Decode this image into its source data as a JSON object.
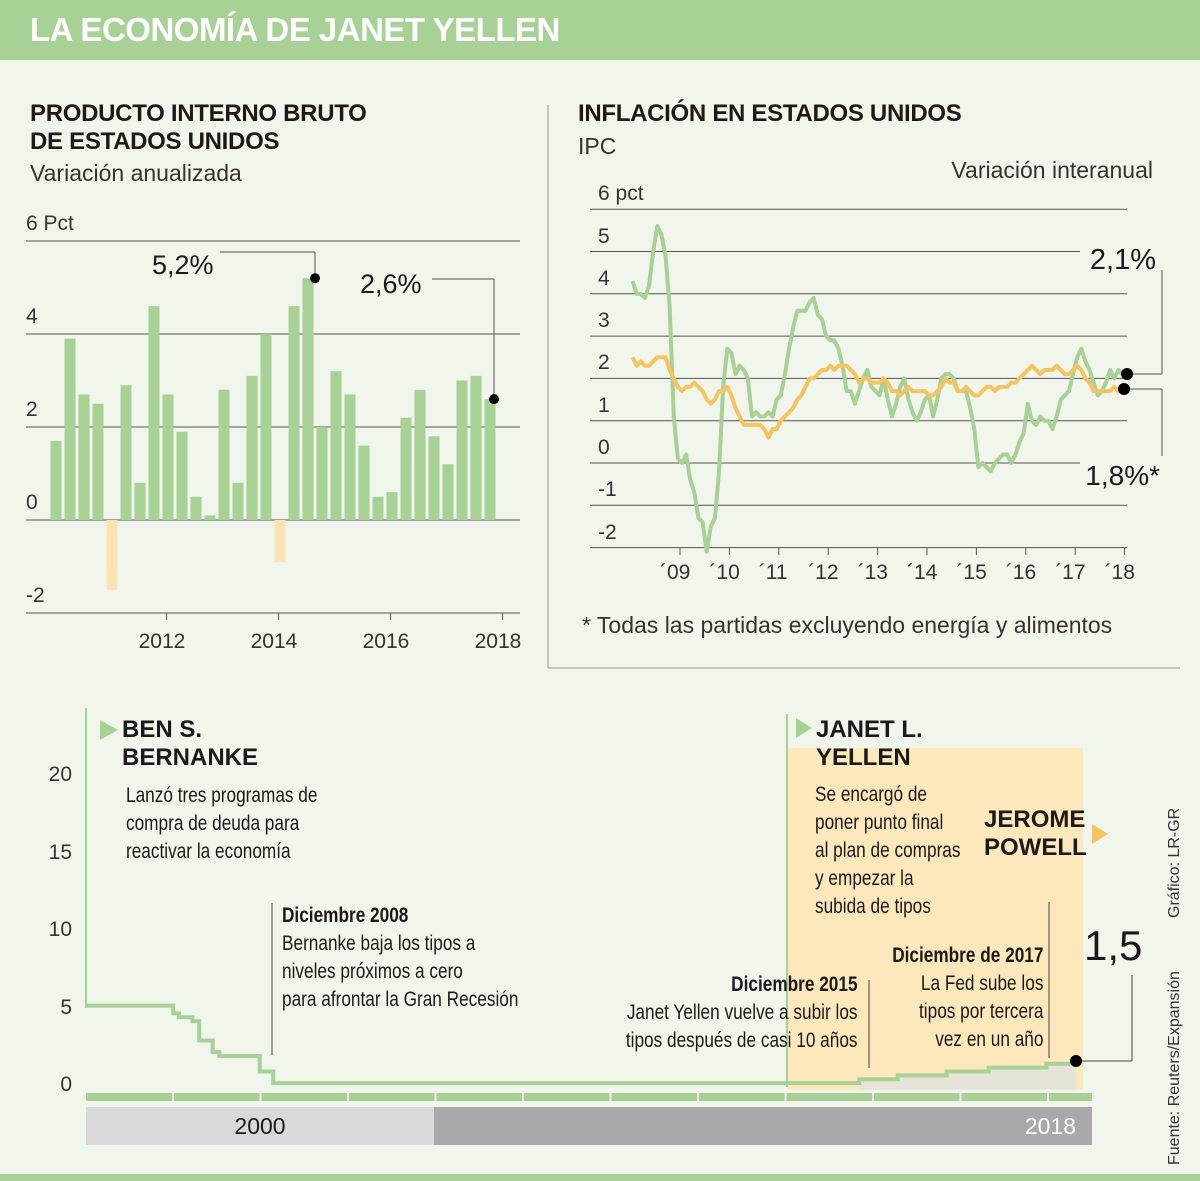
{
  "title": "LA ECONOMÍA DE JANET YELLEN",
  "colors": {
    "green": "#a8d196",
    "orange": "#f7c35c",
    "negative": "#fde2b3",
    "yellen_band": "#fde8bb",
    "accent_bar": "#a8d196"
  },
  "gdp": {
    "title_line1": "PRODUCTO INTERNO BRUTO",
    "title_line2": "DE ESTADOS UNIDOS",
    "subtitle": "Variación anualizada",
    "callout_peak": "5,2%",
    "callout_last": "2,6%"
  },
  "inflation": {
    "title": "INFLACIÓN EN ESTADOS UNIDOS",
    "subtitle": "IPC",
    "measure": "Variación interanual",
    "callout_headline": "2,1%",
    "callout_core": "1,8%*",
    "footnote": "* Todas las partidas excluyendo energía y alimentos"
  },
  "rates": {
    "bernanke": {
      "name1": "BEN S.",
      "name2": "BERNANKE",
      "desc": [
        "Lanzó tres programas de",
        "compra de deuda para",
        "reactivar la economía"
      ]
    },
    "dec2008": {
      "title": "Diciembre 2008",
      "desc": [
        "Bernanke baja los tipos a",
        "niveles próximos a cero",
        "para afrontar la Gran Recesión"
      ]
    },
    "yellen": {
      "name1": "JANET L.",
      "name2": "YELLEN",
      "desc": [
        "Se encargó de",
        "poner punto final",
        "al plan de compras",
        "y empezar la",
        "subida de tipos"
      ]
    },
    "powell": {
      "name1": "JEROME",
      "name2": "POWELL"
    },
    "dec2015": {
      "title": "Diciembre 2015",
      "desc": [
        "Janet Yellen vuelve a subir los",
        "tipos después de casi 10 años"
      ]
    },
    "dec2017": {
      "title": "Diciembre de 2017",
      "desc": [
        "La Fed sube los",
        "tipos por tercera",
        "vez en un año"
      ]
    },
    "last_value": "1,5",
    "era_labels": [
      "2000",
      "2018"
    ]
  },
  "credits": {
    "graphic": "Gráfico: LR-GR",
    "source": "Fuente: Reuters/Expansión"
  },
  "chart_data": [
    {
      "type": "bar",
      "title": "PRODUCTO INTERNO BRUTO DE ESTADOS UNIDOS",
      "subtitle": "Variación anualizada",
      "ylabel": "6 Pct",
      "ylim": [
        -2,
        6
      ],
      "y_ticks": [
        "6 Pct",
        "4",
        "2",
        "0",
        "-2"
      ],
      "x_ticks": [
        "2012",
        "2014",
        "2016",
        "2018"
      ],
      "grid": true,
      "values": [
        1.7,
        3.9,
        2.7,
        2.5,
        -1.5,
        2.9,
        0.8,
        4.6,
        2.7,
        1.9,
        0.5,
        0.1,
        2.8,
        0.8,
        3.1,
        4.0,
        -0.9,
        4.6,
        5.2,
        2.0,
        3.2,
        2.7,
        1.6,
        0.5,
        0.6,
        2.2,
        2.8,
        1.8,
        1.2,
        3.0,
        3.1,
        2.6
      ]
    },
    {
      "type": "line",
      "title": "INFLACIÓN EN ESTADOS UNIDOS",
      "ylim": [
        -2,
        6
      ],
      "y_ticks": [
        "6 pct",
        "5",
        "4",
        "3",
        "2",
        "1",
        "0",
        "-1",
        "-2"
      ],
      "x_ticks": [
        "´09",
        "´10",
        "´11",
        "´12",
        "´13",
        "´14",
        "´15",
        "´16",
        "´17",
        "´18"
      ],
      "x_range": [
        "2008-01",
        "2017-12"
      ],
      "grid": true,
      "series": [
        {
          "color": "#a8d196",
          "values": [
            4.3,
            4.0,
            4.0,
            3.9,
            4.2,
            5.0,
            5.6,
            5.4,
            4.9,
            3.7,
            1.1,
            0.1,
            0.0,
            0.2,
            -0.4,
            -0.7,
            -1.3,
            -1.4,
            -2.1,
            -1.5,
            -1.3,
            -0.2,
            1.8,
            2.7,
            2.6,
            2.1,
            2.3,
            2.2,
            2.0,
            1.1,
            1.2,
            1.1,
            1.1,
            1.2,
            1.1,
            1.5,
            1.6,
            2.1,
            2.7,
            3.2,
            3.6,
            3.6,
            3.6,
            3.8,
            3.9,
            3.5,
            3.4,
            3.0,
            2.9,
            2.9,
            2.7,
            2.3,
            1.7,
            1.7,
            1.4,
            1.7,
            2.0,
            2.2,
            1.8,
            1.7,
            1.6,
            2.0,
            1.5,
            1.1,
            1.4,
            1.8,
            2.0,
            1.5,
            1.2,
            1.0,
            1.2,
            1.5,
            1.6,
            1.1,
            1.5,
            2.0,
            2.1,
            2.1,
            2.0,
            1.7,
            1.7,
            1.7,
            1.3,
            0.8,
            -0.1,
            0.0,
            -0.1,
            -0.2,
            0.0,
            0.1,
            0.2,
            0.2,
            0.0,
            0.2,
            0.5,
            0.7,
            1.4,
            1.0,
            0.9,
            1.1,
            1.0,
            1.0,
            0.8,
            1.1,
            1.5,
            1.6,
            1.7,
            2.1,
            2.5,
            2.7,
            2.4,
            2.2,
            1.9,
            1.6,
            1.7,
            1.9,
            2.2,
            2.0,
            2.2,
            2.1
          ]
        },
        {
          "color": "#f7c35c",
          "values": [
            2.5,
            2.3,
            2.4,
            2.3,
            2.3,
            2.4,
            2.5,
            2.5,
            2.5,
            2.2,
            2.0,
            1.8,
            1.7,
            1.8,
            1.8,
            1.9,
            1.8,
            1.7,
            1.5,
            1.4,
            1.5,
            1.7,
            1.7,
            1.8,
            1.6,
            1.3,
            1.1,
            0.9,
            0.9,
            0.9,
            0.9,
            0.9,
            0.8,
            0.6,
            0.8,
            0.8,
            1.0,
            1.1,
            1.2,
            1.3,
            1.5,
            1.6,
            1.8,
            2.0,
            2.0,
            2.1,
            2.2,
            2.2,
            2.3,
            2.2,
            2.3,
            2.3,
            2.3,
            2.2,
            2.1,
            1.9,
            2.0,
            2.0,
            1.9,
            1.9,
            1.9,
            2.0,
            1.9,
            1.7,
            1.7,
            1.6,
            1.7,
            1.8,
            1.7,
            1.7,
            1.7,
            1.7,
            1.6,
            1.6,
            1.7,
            1.8,
            2.0,
            1.9,
            1.9,
            1.7,
            1.7,
            1.8,
            1.7,
            1.6,
            1.6,
            1.7,
            1.8,
            1.8,
            1.7,
            1.8,
            1.8,
            1.8,
            1.9,
            1.9,
            2.0,
            2.1,
            2.2,
            2.3,
            2.2,
            2.1,
            2.2,
            2.2,
            2.2,
            2.3,
            2.2,
            2.1,
            2.1,
            2.2,
            2.3,
            2.2,
            2.0,
            1.9,
            1.7,
            1.7,
            1.7,
            1.7,
            1.7,
            1.8,
            1.7,
            1.8
          ]
        }
      ]
    },
    {
      "type": "line",
      "subtype": "step",
      "ylim": [
        0,
        20
      ],
      "y_ticks": [
        "20",
        "15",
        "10",
        "5",
        "0"
      ],
      "steps": [
        {
          "date": "2006",
          "rate": 5.25
        },
        {
          "date": "2007-09",
          "rate": 4.75
        },
        {
          "date": "2007-10",
          "rate": 4.5
        },
        {
          "date": "2007-12",
          "rate": 4.25
        },
        {
          "date": "2008-01",
          "rate": 3.0
        },
        {
          "date": "2008-03",
          "rate": 2.25
        },
        {
          "date": "2008-04",
          "rate": 2.0
        },
        {
          "date": "2008-10",
          "rate": 1.0
        },
        {
          "date": "2008-12",
          "rate": 0.25
        },
        {
          "date": "2015-12",
          "rate": 0.5
        },
        {
          "date": "2016-12",
          "rate": 0.75
        },
        {
          "date": "2017-03",
          "rate": 1.0
        },
        {
          "date": "2017-06",
          "rate": 1.25
        },
        {
          "date": "2017-12",
          "rate": 1.5
        }
      ]
    }
  ]
}
